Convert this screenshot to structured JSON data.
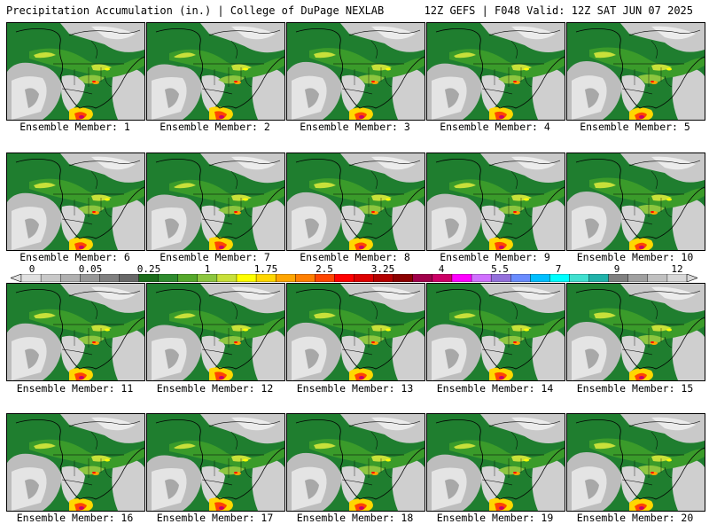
{
  "header": {
    "left": "Precipitation Accumulation (in.) | College of DuPage NEXLAB",
    "right": "12Z GEFS | F048 Valid: 12Z SAT JUN 07 2025"
  },
  "panels": [
    {
      "label": "Ensemble Member: 1"
    },
    {
      "label": "Ensemble Member: 2"
    },
    {
      "label": "Ensemble Member: 3"
    },
    {
      "label": "Ensemble Member: 4"
    },
    {
      "label": "Ensemble Member: 5"
    },
    {
      "label": "Ensemble Member: 6"
    },
    {
      "label": "Ensemble Member: 7"
    },
    {
      "label": "Ensemble Member: 8"
    },
    {
      "label": "Ensemble Member: 9"
    },
    {
      "label": "Ensemble Member: 10"
    },
    {
      "label": "Ensemble Member: 11"
    },
    {
      "label": "Ensemble Member: 12"
    },
    {
      "label": "Ensemble Member: 13"
    },
    {
      "label": "Ensemble Member: 14"
    },
    {
      "label": "Ensemble Member: 15"
    },
    {
      "label": "Ensemble Member: 16"
    },
    {
      "label": "Ensemble Member: 17"
    },
    {
      "label": "Ensemble Member: 18"
    },
    {
      "label": "Ensemble Member: 19"
    },
    {
      "label": "Ensemble Member: 20"
    }
  ],
  "colorbar": {
    "tick_labels": [
      "0",
      "0.05",
      "0.25",
      "1",
      "1.75",
      "2.5",
      "3.25",
      "4",
      "5.5",
      "7",
      "9",
      "12"
    ],
    "colors": [
      "#e0e0e0",
      "#c8c8c8",
      "#b0b0b0",
      "#989898",
      "#808080",
      "#686868",
      "#1a6b1a",
      "#2e8b2e",
      "#55a82b",
      "#8cc63f",
      "#c8e03a",
      "#ffff00",
      "#ffd700",
      "#ffa500",
      "#ff7f00",
      "#ff4500",
      "#ff0000",
      "#dd0000",
      "#b40000",
      "#8b0000",
      "#a0004a",
      "#cc0066",
      "#ff00ff",
      "#d070ff",
      "#9370db",
      "#6a8cff",
      "#00bfff",
      "#00ffff",
      "#40e0d0",
      "#20b2aa",
      "#808080",
      "#a0a0a0",
      "#c0c0c0",
      "#d8d8d8"
    ]
  }
}
